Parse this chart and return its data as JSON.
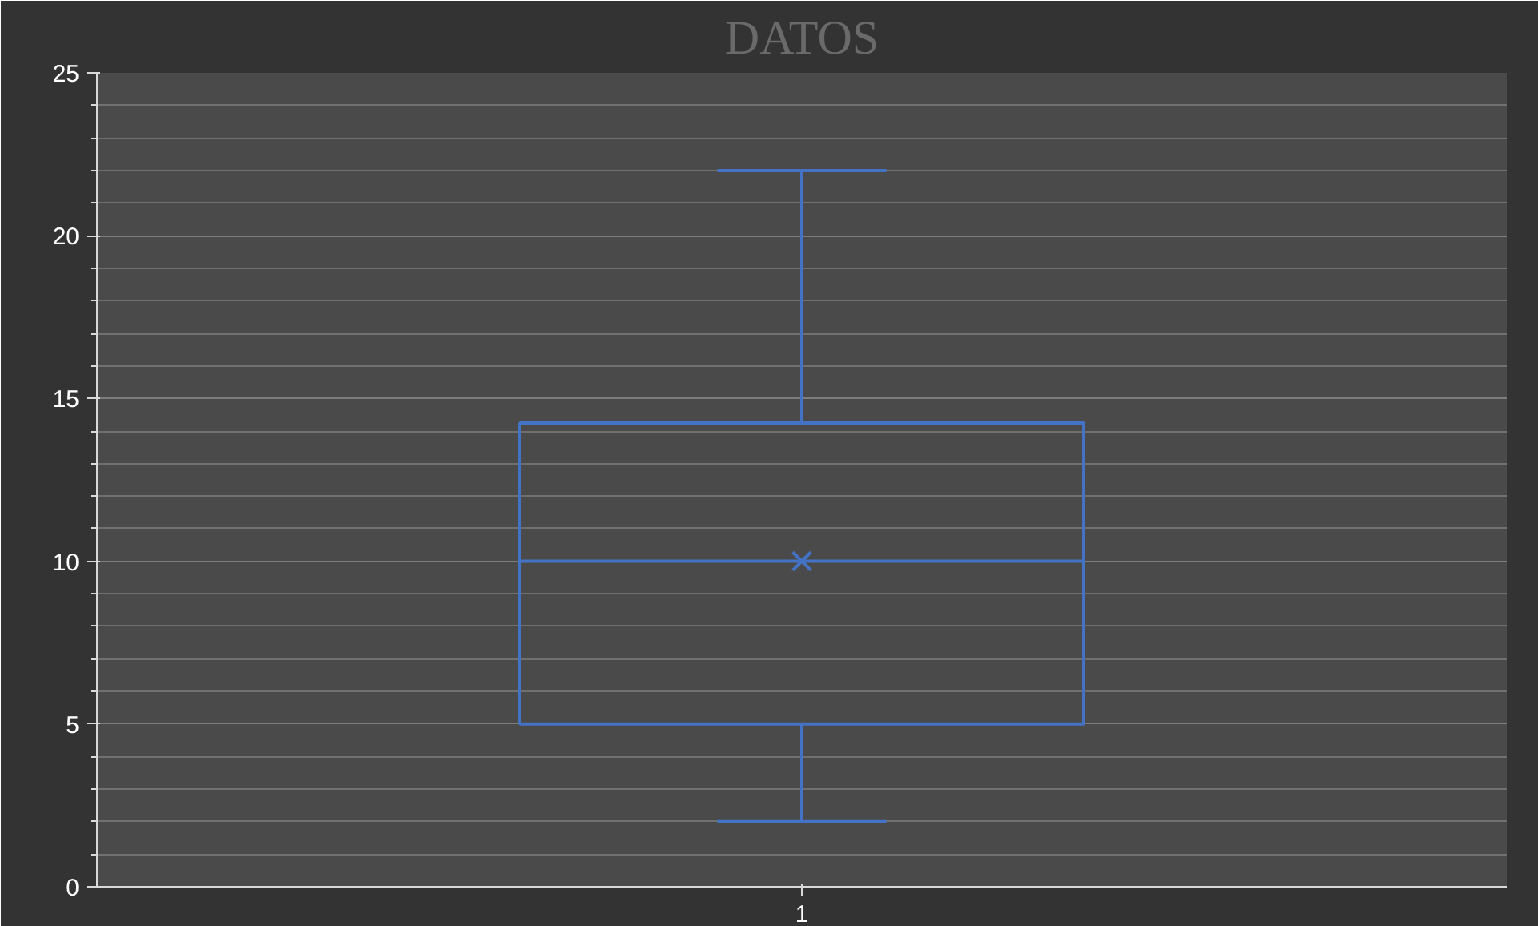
{
  "chart_data": {
    "type": "box",
    "title": "DATOS",
    "categories": [
      "1"
    ],
    "boxes": [
      {
        "low": 2,
        "q1": 5,
        "median": 10,
        "q3": 14.25,
        "high": 22,
        "mean": 10
      }
    ],
    "color": "#4472c4",
    "ylim": [
      0,
      25
    ],
    "yticks": [
      0,
      {
        "value": 1,
        "label": null
      },
      {
        "value": 2,
        "label": null
      },
      {
        "value": 3,
        "label": null
      },
      {
        "value": 4,
        "label": null
      },
      5,
      {
        "value": 6,
        "label": null
      },
      {
        "value": 7,
        "label": null
      },
      {
        "value": 8,
        "label": null
      },
      {
        "value": 9,
        "label": null
      },
      10,
      {
        "value": 11,
        "label": null
      },
      {
        "value": 12,
        "label": null
      },
      {
        "value": 13,
        "label": null
      },
      {
        "value": 14,
        "label": null
      },
      15,
      {
        "value": 16,
        "label": null
      },
      {
        "value": 17,
        "label": null
      },
      {
        "value": 18,
        "label": null
      },
      {
        "value": 19,
        "label": null
      },
      20,
      {
        "value": 21,
        "label": null
      },
      {
        "value": 22,
        "label": null
      },
      {
        "value": 23,
        "label": null
      },
      {
        "value": 24,
        "label": null
      },
      25
    ],
    "grid": "y"
  }
}
